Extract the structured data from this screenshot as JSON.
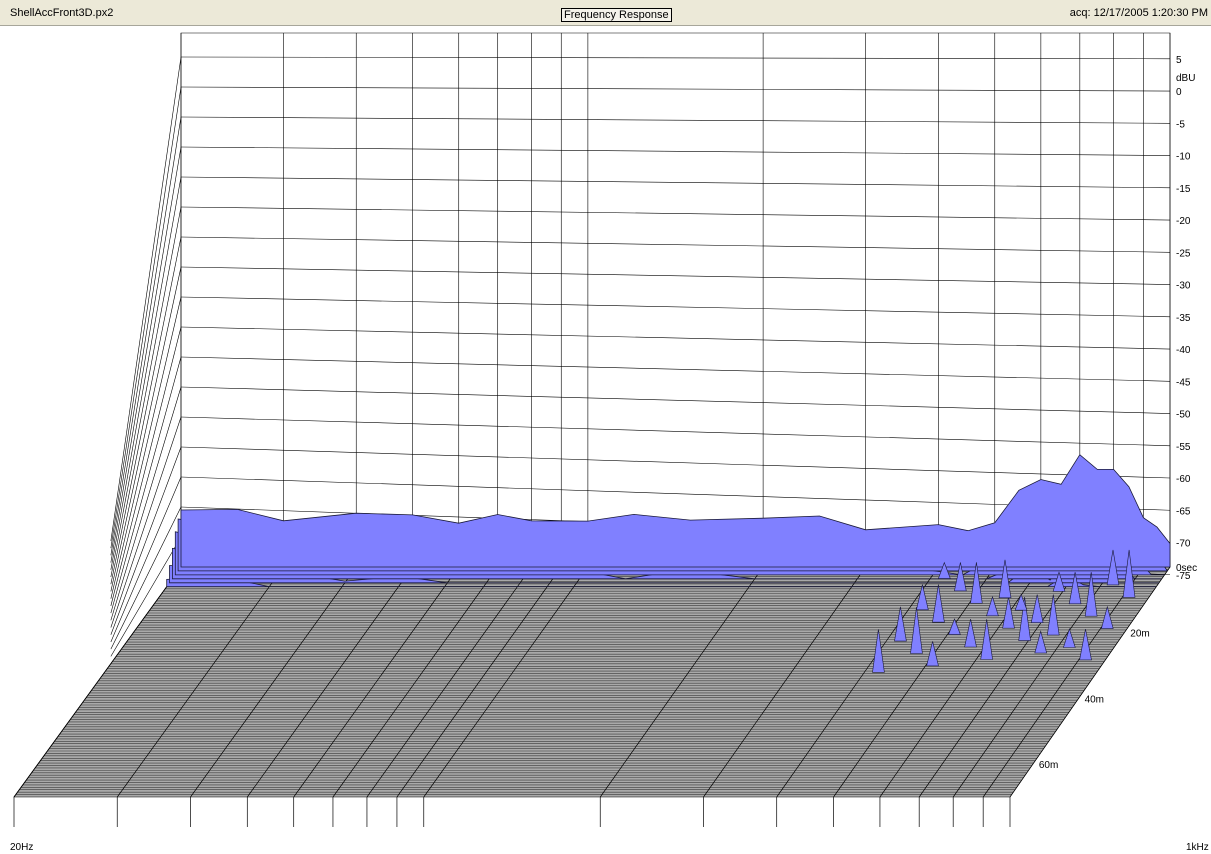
{
  "header": {
    "file_name": "ShellAccFront3D.px2",
    "view_title": "Frequency Response",
    "acq_timestamp": "acq: 12/17/2005 1:20:30 PM"
  },
  "colors": {
    "surface_fill": "#8080ff",
    "surface_stroke": "#1a1a3a",
    "floor_fill": "#a9a9a9",
    "grid_line": "#000000"
  },
  "chart_data": {
    "type": "area",
    "style": "3d waterfall / cumulative spectral decay",
    "grid": true,
    "x_axis": {
      "scale": "log",
      "range_hz": [
        20,
        1000
      ],
      "min_label": "20Hz",
      "max_label": "1kHz"
    },
    "y_axis": {
      "unit": "dBU",
      "range": [
        -80,
        9
      ],
      "tick_labels": [
        "5",
        "0",
        "-5",
        "-10",
        "-15",
        "-20",
        "-25",
        "-30",
        "-35",
        "-40",
        "-45",
        "-50",
        "-55",
        "-60",
        "-65",
        "-70",
        "-75"
      ]
    },
    "z_axis": {
      "range_ms": [
        0,
        70
      ],
      "tick_labels": [
        "0sec",
        "20m",
        "40m",
        "60m"
      ]
    },
    "front_slice_t0": {
      "freqs_hz": [
        20,
        25,
        30,
        40,
        50,
        60,
        70,
        80,
        100,
        120,
        150,
        200,
        250,
        300,
        400,
        450,
        500,
        550,
        600,
        650,
        700,
        750,
        800,
        850,
        900,
        950,
        1000
      ],
      "db": [
        -70.5,
        -71,
        -71.5,
        -71.5,
        -71.5,
        -72,
        -72,
        -72,
        -72,
        -72,
        -71.5,
        -72,
        -72,
        -73,
        -73.5,
        -74,
        -72,
        -68,
        -65,
        -66,
        -62,
        -63,
        -64,
        -67,
        -71,
        -74,
        -76
      ]
    }
  }
}
